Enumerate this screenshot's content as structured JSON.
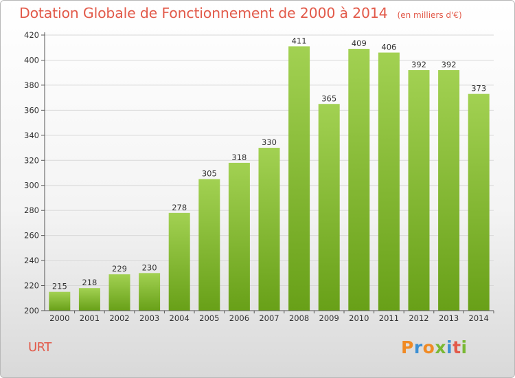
{
  "header": {
    "title": "Dotation Globale de Fonctionnement de 2000 à 2014",
    "unit": "(en milliers d'€)"
  },
  "footer": {
    "city": "URT",
    "logo": "Proxiti",
    "logo_colors": [
      "#f08a24",
      "#3b8fd4",
      "#f08a24",
      "#79b833",
      "#3b8fd4",
      "#e25a4a",
      "#79b833"
    ]
  },
  "colors": {
    "bar_top": "#a2d152",
    "bar_bottom": "#68a018",
    "title": "#e25a4a",
    "grid": "#d8d8d8"
  },
  "chart_data": {
    "type": "bar",
    "title": "Dotation Globale de Fonctionnement de 2000 à 2014",
    "subtitle": "(en milliers d'€)",
    "xlabel": "",
    "ylabel": "",
    "categories": [
      "2000",
      "2001",
      "2002",
      "2003",
      "2004",
      "2005",
      "2006",
      "2007",
      "2008",
      "2009",
      "2010",
      "2011",
      "2012",
      "2013",
      "2014"
    ],
    "values": [
      215,
      218,
      229,
      230,
      278,
      305,
      318,
      330,
      411,
      365,
      409,
      406,
      392,
      392,
      373
    ],
    "ylim": [
      200,
      420
    ],
    "yticks": [
      200,
      220,
      240,
      260,
      280,
      300,
      320,
      340,
      360,
      380,
      400,
      420
    ],
    "grid": true,
    "data_labels": true
  }
}
